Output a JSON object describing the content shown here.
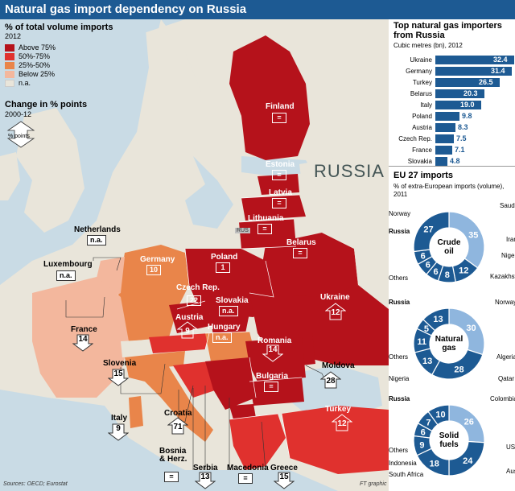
{
  "title": "Natural gas import dependency on Russia",
  "legend": {
    "title": "% of total volume imports",
    "year": "2012",
    "items": [
      {
        "label": "Above 75%",
        "color": "#b5121b"
      },
      {
        "label": "50%-75%",
        "color": "#e0312e"
      },
      {
        "label": "25%-50%",
        "color": "#e9854a"
      },
      {
        "label": "Below 25%",
        "color": "#f3b79d"
      },
      {
        "label": "n.a.",
        "color": "#e9e5da"
      }
    ]
  },
  "change": {
    "title": "Change in % points",
    "period": "2000-12",
    "arrow_label": "% points"
  },
  "russia_label": "RUSSIA",
  "rus_tag": "RUS",
  "countries": {
    "finland": {
      "name": "Finland",
      "value": "="
    },
    "estonia": {
      "name": "Estonia",
      "value": "="
    },
    "latvia": {
      "name": "Latvia",
      "value": "="
    },
    "lithuania": {
      "name": "Lithuania",
      "value": "="
    },
    "belarus": {
      "name": "Belarus",
      "value": "="
    },
    "poland": {
      "name": "Poland",
      "value": "1"
    },
    "germany": {
      "name": "Germany",
      "value": "10"
    },
    "netherlands": {
      "name": "Netherlands",
      "value": "n.a."
    },
    "luxembourg": {
      "name": "Luxembourg",
      "value": "n.a."
    },
    "czech": {
      "name": "Czech Rep.",
      "value": "22"
    },
    "slovakia": {
      "name": "Slovakia",
      "value": "n.a."
    },
    "ukraine": {
      "name": "Ukraine",
      "value": "12"
    },
    "austria": {
      "name": "Austria",
      "value": "9"
    },
    "hungary": {
      "name": "Hungary",
      "value": "n.a."
    },
    "france": {
      "name": "France",
      "value": "14"
    },
    "romania": {
      "name": "Romania",
      "value": "14"
    },
    "moldova": {
      "name": "Moldova",
      "value": "28"
    },
    "bulgaria": {
      "name": "Bulgaria",
      "value": "="
    },
    "slovenia": {
      "name": "Slovenia",
      "value": "15"
    },
    "croatia": {
      "name": "Croatia",
      "value": "71"
    },
    "italy": {
      "name": "Italy",
      "value": "9"
    },
    "turkey": {
      "name": "Turkey",
      "value": "12"
    },
    "bosnia": {
      "name": "Bosnia & Herz.",
      "value": "="
    },
    "serbia": {
      "name": "Serbia",
      "value": "13"
    },
    "macedonia": {
      "name": "Macedonia",
      "value": "="
    },
    "greece": {
      "name": "Greece",
      "value": "15"
    }
  },
  "top_importers": {
    "title": "Top natural gas importers from Russia",
    "subtitle": "Cubic metres (bn), 2012",
    "rows": [
      {
        "country": "Ukraine",
        "value": 32.4
      },
      {
        "country": "Germany",
        "value": 31.4
      },
      {
        "country": "Turkey",
        "value": 26.5
      },
      {
        "country": "Belarus",
        "value": 20.3
      },
      {
        "country": "Italy",
        "value": 19.0
      },
      {
        "country": "Poland",
        "value": 9.8
      },
      {
        "country": "Austria",
        "value": 8.3
      },
      {
        "country": "Czech Rep.",
        "value": 7.5
      },
      {
        "country": "France",
        "value": 7.1
      },
      {
        "country": "Slovakia",
        "value": 4.8
      }
    ],
    "value_labels": [
      "32.4",
      "31.4",
      "26.5",
      "20.3",
      "19.0",
      "9.8",
      "8.3",
      "7.5",
      "7.1",
      "4.8"
    ]
  },
  "eu27": {
    "title": "EU 27 imports",
    "subtitle": "% of extra-European imports (volume), 2011",
    "donuts": [
      {
        "name": "Crude oil",
        "segments": [
          {
            "label": "Russia",
            "value": 35,
            "tone": "light"
          },
          {
            "label": "Norway",
            "value": 12,
            "tone": "dark"
          },
          {
            "label": "Saudi Arabia",
            "value": 8,
            "tone": "dark"
          },
          {
            "label": "Iran",
            "value": 6,
            "tone": "dark"
          },
          {
            "label": "Nigeria",
            "value": 6,
            "tone": "dark"
          },
          {
            "label": "Kazakhstan",
            "value": 6,
            "tone": "dark"
          },
          {
            "label": "Others",
            "value": 27,
            "tone": "dark"
          }
        ]
      },
      {
        "name": "Natural gas",
        "segments": [
          {
            "label": "Russia",
            "value": 30,
            "tone": "light"
          },
          {
            "label": "Norway",
            "value": 28,
            "tone": "dark"
          },
          {
            "label": "Algeria",
            "value": 13,
            "tone": "dark"
          },
          {
            "label": "Qatar",
            "value": 11,
            "tone": "dark"
          },
          {
            "label": "Nigeria",
            "value": 5,
            "tone": "dark"
          },
          {
            "label": "Others",
            "value": 13,
            "tone": "dark"
          }
        ]
      },
      {
        "name": "Solid fuels",
        "segments": [
          {
            "label": "Russia",
            "value": 26,
            "tone": "light"
          },
          {
            "label": "Colombia",
            "value": 24,
            "tone": "dark"
          },
          {
            "label": "US",
            "value": 18,
            "tone": "dark"
          },
          {
            "label": "Australia",
            "value": 9,
            "tone": "dark"
          },
          {
            "label": "South Africa",
            "value": 6,
            "tone": "dark"
          },
          {
            "label": "Indonesia",
            "value": 7,
            "tone": "dark"
          },
          {
            "label": "Others",
            "value": 10,
            "tone": "dark"
          }
        ]
      }
    ]
  },
  "source": "Sources: OECD; Eurostat",
  "credit": "FT graphic",
  "colors": {
    "dark_blue": "#1d5a93",
    "light_blue": "#8fb6de",
    "sea": "#c9dbe5"
  }
}
